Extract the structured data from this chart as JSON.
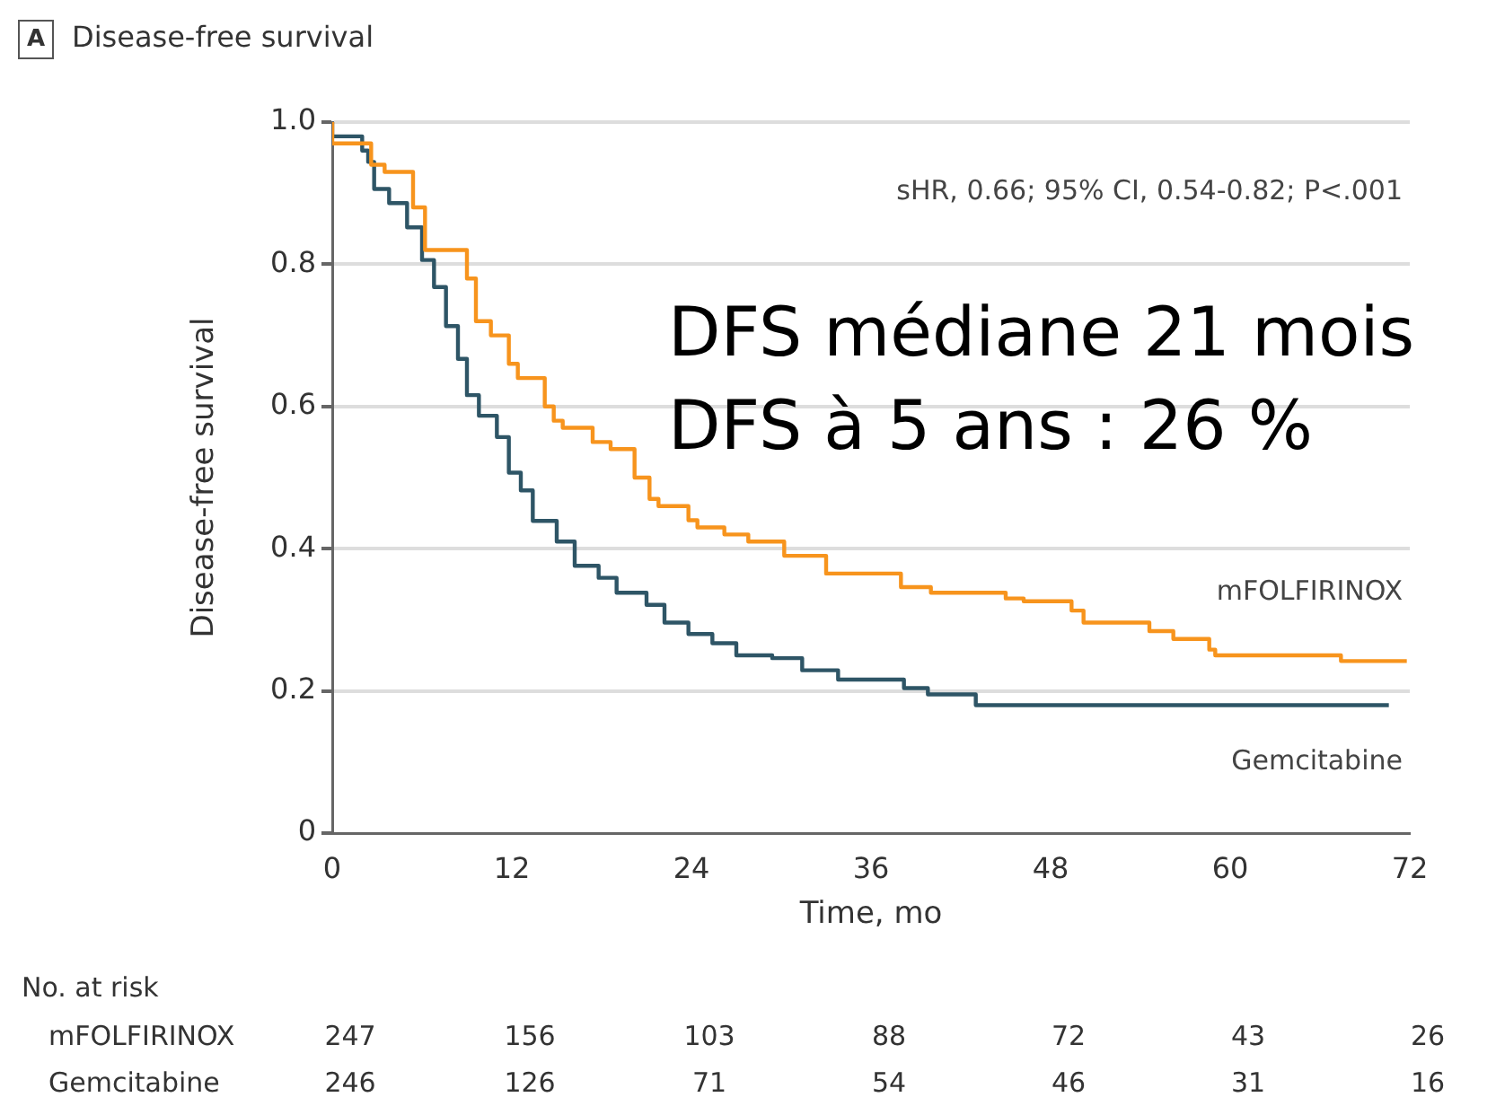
{
  "chart_data": {
    "type": "step",
    "title": "Disease-free survival",
    "xlabel": "Time, mo",
    "ylabel": "Disease-free survival",
    "xlim": [
      0,
      72
    ],
    "xticks": [
      0,
      12,
      24,
      36,
      48,
      60,
      72
    ],
    "ylim": [
      0,
      1
    ],
    "yticks": [
      0,
      0.2,
      0.4,
      0.6,
      0.8,
      {
        "value": 1,
        "label": "1.0"
      }
    ],
    "grid": "y",
    "legend": false,
    "marker": "none",
    "series": [
      {
        "name": "mFOLFIRINOX",
        "color": "#f7941d",
        "x": [
          0,
          2.6,
          3.5,
          5.4,
          6.2,
          9,
          9.6,
          10.6,
          11.8,
          12.4,
          14.2,
          14.8,
          15.4,
          17.4,
          18.6,
          20.2,
          21.2,
          21.8,
          23.8,
          24.4,
          26.2,
          27.8,
          30.2,
          31.4,
          33,
          38,
          40,
          45,
          46.2,
          49.4,
          50.2,
          54.6,
          56.2,
          58.6,
          59,
          67.4,
          70,
          71.8
        ],
        "values": [
          1,
          0.97,
          0.94,
          0.93,
          0.88,
          0.82,
          0.78,
          0.72,
          0.7,
          0.66,
          0.64,
          0.6,
          0.58,
          0.57,
          0.55,
          0.54,
          0.5,
          0.47,
          0.46,
          0.44,
          0.43,
          0.42,
          0.41,
          0.39,
          0.39,
          0.365,
          0.346,
          0.338,
          0.33,
          0.326,
          0.313,
          0.296,
          0.284,
          0.273,
          0.258,
          0.25,
          0.242,
          0.242
        ]
      },
      {
        "name": "Gemcitabine",
        "color": "#2e5566",
        "x": [
          0,
          2,
          2.4,
          2.8,
          3.8,
          5,
          6,
          6.8,
          7.6,
          8.4,
          9,
          9.8,
          11,
          11.8,
          12.6,
          13.4,
          15,
          16.2,
          17.8,
          19,
          21,
          22.2,
          23.8,
          25.4,
          27,
          29.4,
          31.4,
          33.8,
          38.2,
          39.8,
          43,
          66.6,
          70.6
        ],
        "values": [
          1,
          0.98,
          0.96,
          0.944,
          0.906,
          0.886,
          0.852,
          0.806,
          0.768,
          0.713,
          0.667,
          0.616,
          0.587,
          0.557,
          0.507,
          0.482,
          0.439,
          0.41,
          0.376,
          0.359,
          0.338,
          0.321,
          0.296,
          0.28,
          0.267,
          0.25,
          0.246,
          0.229,
          0.216,
          0.204,
          0.195,
          0.18,
          0.18
        ]
      }
    ],
    "annotations": [
      "A",
      "sHR, 0.66; 95% CI, 0.54-0.82; P<.001",
      "DFS médiane 21 mois",
      "DFS à 5 ans : 26 %",
      "No. at risk",
      "247",
      "156",
      "103",
      "88",
      "72",
      "43",
      "26",
      "246",
      "126",
      "71",
      "54",
      "46",
      "31",
      "16"
    ]
  }
}
